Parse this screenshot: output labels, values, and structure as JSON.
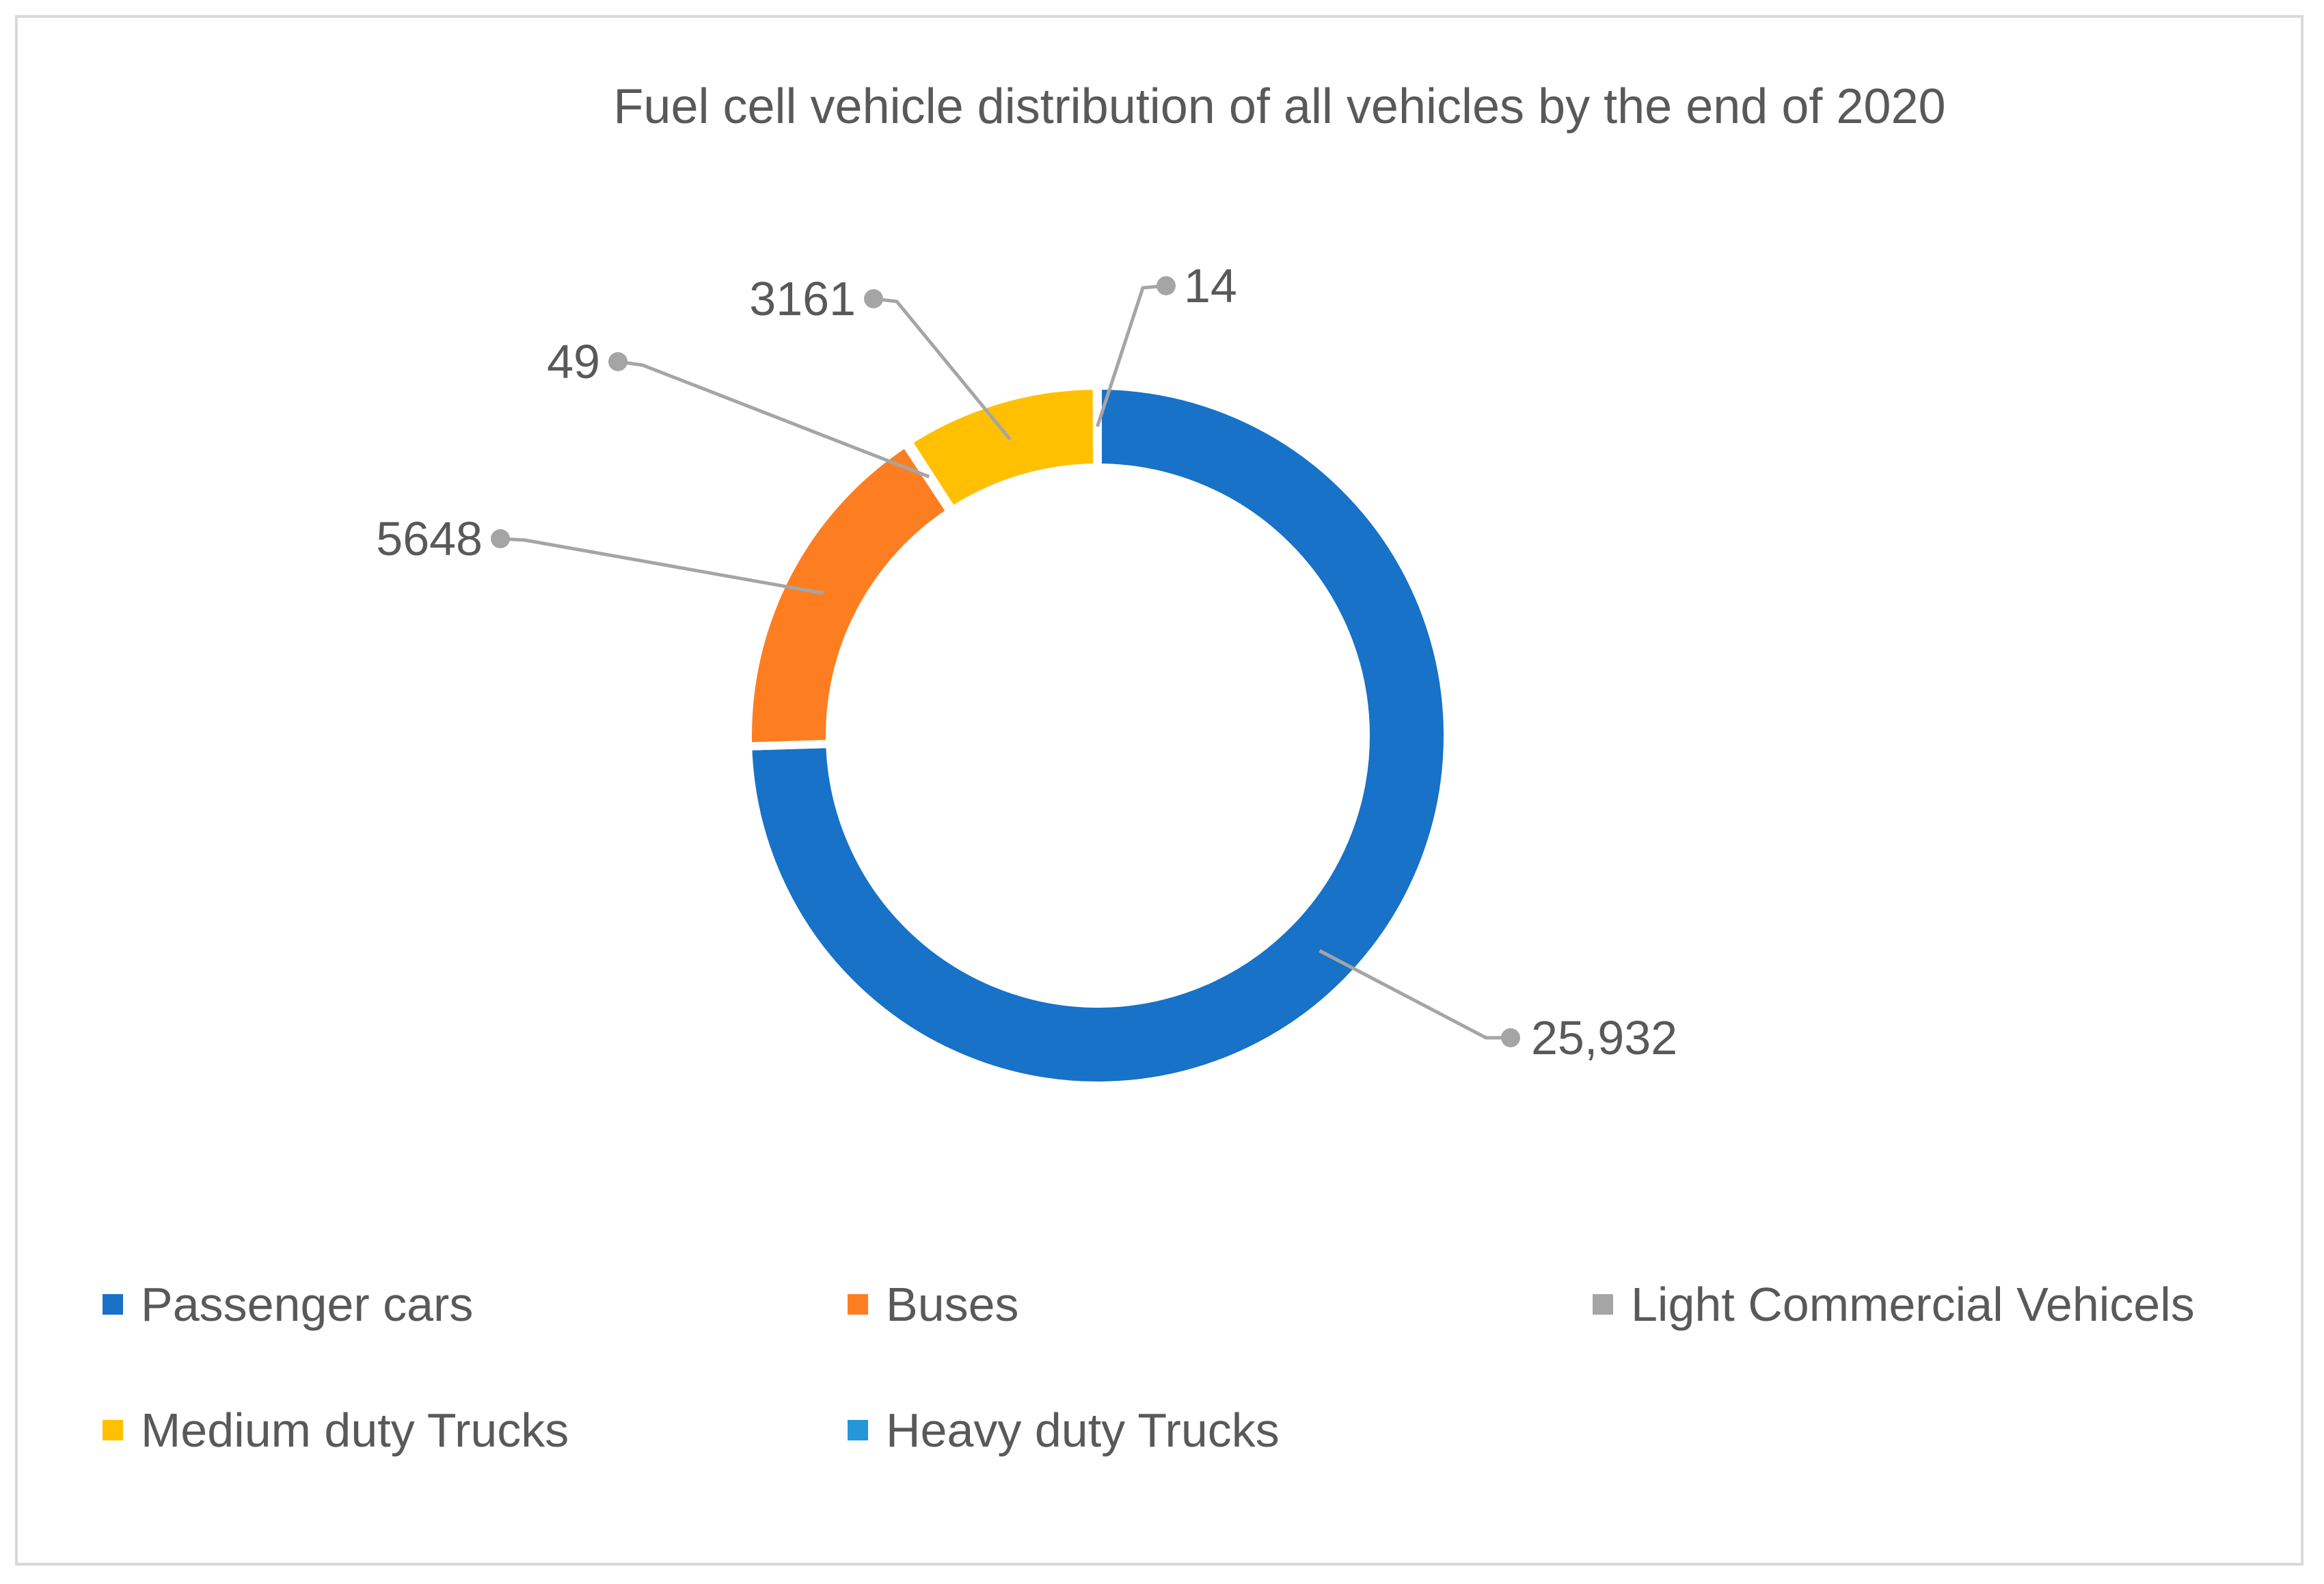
{
  "chart_data": {
    "type": "pie",
    "variant": "doughnut",
    "title": "Fuel cell vehicle distribution of all vehicles by the end of 2020",
    "categories": [
      "Passenger cars",
      "Buses",
      "Light Commercial Vehicels",
      "Medium duty Trucks",
      "Heavy duty Trucks"
    ],
    "values": [
      25932,
      5648,
      49,
      3161,
      14
    ],
    "data_labels": [
      "25,932",
      "5648",
      "49",
      "3161",
      "14"
    ],
    "colors": [
      "#1772c8",
      "#fd7e21",
      "#a5a5a5",
      "#ffc001",
      "#2597d8"
    ],
    "legend_position": "bottom"
  }
}
